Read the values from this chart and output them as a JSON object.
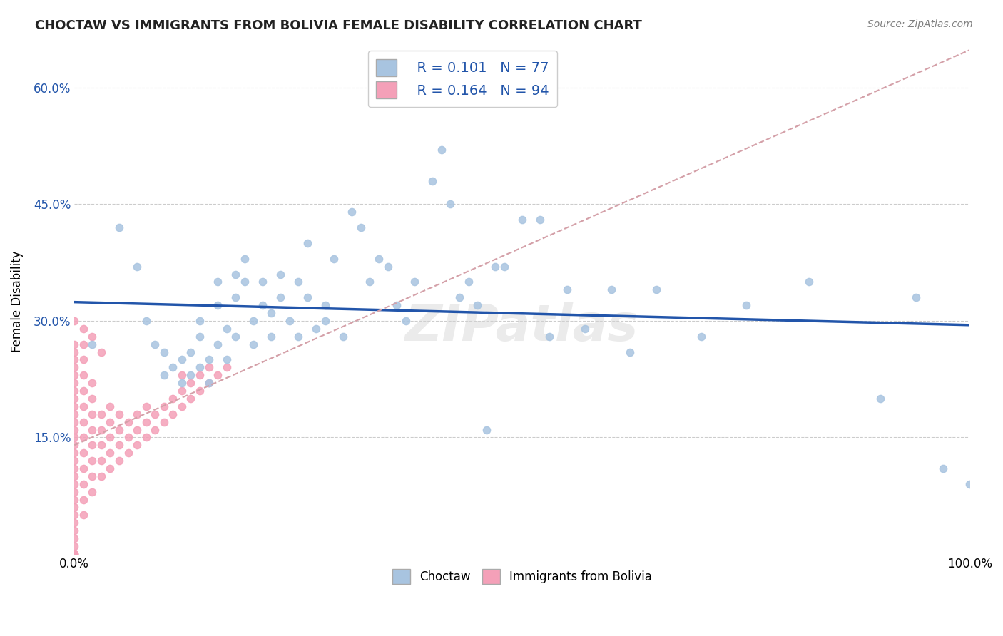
{
  "title": "CHOCTAW VS IMMIGRANTS FROM BOLIVIA FEMALE DISABILITY CORRELATION CHART",
  "source": "Source: ZipAtlas.com",
  "ylabel": "Female Disability",
  "xlim": [
    0.0,
    1.0
  ],
  "ylim": [
    0.0,
    0.65
  ],
  "xtick_labels": [
    "0.0%",
    "100.0%"
  ],
  "ytick_labels": [
    "15.0%",
    "30.0%",
    "45.0%",
    "60.0%"
  ],
  "ytick_values": [
    0.15,
    0.3,
    0.45,
    0.6
  ],
  "legend_labels": [
    "Choctaw",
    "Immigrants from Bolivia"
  ],
  "choctaw_color": "#a8c4e0",
  "bolivia_color": "#f4a0b8",
  "choctaw_line_color": "#2255aa",
  "bolivia_line_color": "#d4a0a8",
  "choctaw_R": 0.101,
  "choctaw_N": 77,
  "bolivia_R": 0.164,
  "bolivia_N": 94,
  "watermark": "ZIPatlas",
  "background_color": "#ffffff",
  "grid_color": "#cccccc",
  "choctaw_scatter_x": [
    0.02,
    0.05,
    0.07,
    0.08,
    0.09,
    0.1,
    0.1,
    0.11,
    0.12,
    0.12,
    0.13,
    0.13,
    0.14,
    0.14,
    0.14,
    0.15,
    0.15,
    0.16,
    0.16,
    0.16,
    0.17,
    0.17,
    0.18,
    0.18,
    0.18,
    0.19,
    0.19,
    0.2,
    0.2,
    0.21,
    0.21,
    0.22,
    0.22,
    0.23,
    0.23,
    0.24,
    0.25,
    0.25,
    0.26,
    0.26,
    0.27,
    0.28,
    0.28,
    0.29,
    0.3,
    0.31,
    0.32,
    0.33,
    0.34,
    0.35,
    0.36,
    0.37,
    0.38,
    0.4,
    0.41,
    0.42,
    0.43,
    0.44,
    0.45,
    0.46,
    0.47,
    0.48,
    0.5,
    0.52,
    0.53,
    0.55,
    0.57,
    0.6,
    0.62,
    0.65,
    0.7,
    0.75,
    0.82,
    0.9,
    0.94,
    0.97,
    1.0
  ],
  "choctaw_scatter_y": [
    0.27,
    0.42,
    0.37,
    0.3,
    0.27,
    0.23,
    0.26,
    0.24,
    0.22,
    0.25,
    0.23,
    0.26,
    0.28,
    0.24,
    0.3,
    0.22,
    0.25,
    0.27,
    0.32,
    0.35,
    0.25,
    0.29,
    0.33,
    0.36,
    0.28,
    0.35,
    0.38,
    0.3,
    0.27,
    0.32,
    0.35,
    0.31,
    0.28,
    0.33,
    0.36,
    0.3,
    0.28,
    0.35,
    0.33,
    0.4,
    0.29,
    0.3,
    0.32,
    0.38,
    0.28,
    0.44,
    0.42,
    0.35,
    0.38,
    0.37,
    0.32,
    0.3,
    0.35,
    0.48,
    0.52,
    0.45,
    0.33,
    0.35,
    0.32,
    0.16,
    0.37,
    0.37,
    0.43,
    0.43,
    0.28,
    0.34,
    0.29,
    0.34,
    0.26,
    0.34,
    0.28,
    0.32,
    0.35,
    0.2,
    0.33,
    0.11,
    0.09
  ],
  "bolivia_scatter_x": [
    0.0,
    0.0,
    0.0,
    0.0,
    0.0,
    0.0,
    0.0,
    0.0,
    0.0,
    0.0,
    0.0,
    0.0,
    0.0,
    0.0,
    0.0,
    0.0,
    0.0,
    0.0,
    0.0,
    0.0,
    0.0,
    0.0,
    0.0,
    0.0,
    0.0,
    0.0,
    0.0,
    0.0,
    0.0,
    0.0,
    0.01,
    0.01,
    0.01,
    0.01,
    0.01,
    0.01,
    0.01,
    0.01,
    0.01,
    0.01,
    0.01,
    0.01,
    0.02,
    0.02,
    0.02,
    0.02,
    0.02,
    0.02,
    0.02,
    0.02,
    0.03,
    0.03,
    0.03,
    0.03,
    0.03,
    0.04,
    0.04,
    0.04,
    0.04,
    0.04,
    0.05,
    0.05,
    0.05,
    0.05,
    0.06,
    0.06,
    0.06,
    0.07,
    0.07,
    0.07,
    0.08,
    0.08,
    0.08,
    0.09,
    0.09,
    0.1,
    0.1,
    0.11,
    0.11,
    0.12,
    0.12,
    0.12,
    0.13,
    0.13,
    0.14,
    0.14,
    0.15,
    0.15,
    0.16,
    0.17,
    0.02,
    0.03,
    0.01,
    0.0
  ],
  "bolivia_scatter_y": [
    0.0,
    0.0,
    0.0,
    0.01,
    0.02,
    0.03,
    0.04,
    0.05,
    0.06,
    0.07,
    0.08,
    0.09,
    0.1,
    0.11,
    0.12,
    0.13,
    0.14,
    0.15,
    0.16,
    0.17,
    0.18,
    0.19,
    0.2,
    0.21,
    0.22,
    0.23,
    0.24,
    0.25,
    0.26,
    0.27,
    0.05,
    0.07,
    0.09,
    0.11,
    0.13,
    0.15,
    0.17,
    0.19,
    0.21,
    0.23,
    0.25,
    0.27,
    0.08,
    0.1,
    0.12,
    0.14,
    0.16,
    0.18,
    0.2,
    0.22,
    0.1,
    0.12,
    0.14,
    0.16,
    0.18,
    0.11,
    0.13,
    0.15,
    0.17,
    0.19,
    0.12,
    0.14,
    0.16,
    0.18,
    0.13,
    0.15,
    0.17,
    0.14,
    0.16,
    0.18,
    0.15,
    0.17,
    0.19,
    0.16,
    0.18,
    0.17,
    0.19,
    0.18,
    0.2,
    0.19,
    0.21,
    0.23,
    0.2,
    0.22,
    0.21,
    0.23,
    0.22,
    0.24,
    0.23,
    0.24,
    0.28,
    0.26,
    0.29,
    0.3
  ]
}
